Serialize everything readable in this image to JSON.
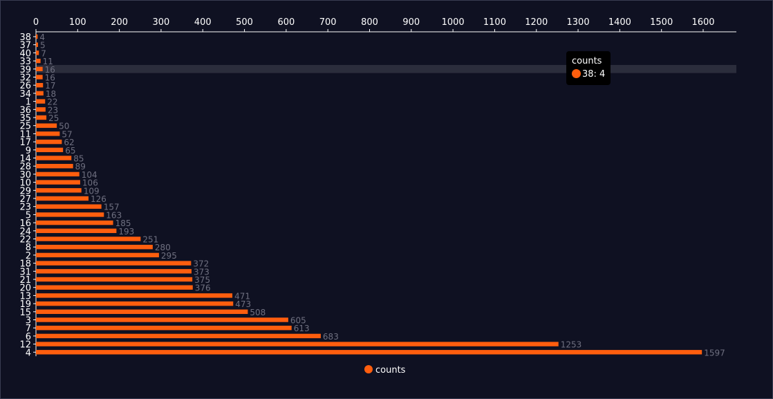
{
  "chart_data": {
    "type": "bar",
    "orientation": "horizontal",
    "categories": [
      "38",
      "37",
      "40",
      "33",
      "39",
      "32",
      "26",
      "34",
      "1",
      "36",
      "35",
      "25",
      "11",
      "17",
      "9",
      "14",
      "28",
      "30",
      "10",
      "29",
      "27",
      "23",
      "5",
      "16",
      "24",
      "22",
      "8",
      "2",
      "18",
      "31",
      "21",
      "20",
      "13",
      "19",
      "15",
      "3",
      "7",
      "6",
      "12",
      "4"
    ],
    "series": [
      {
        "name": "counts",
        "values": [
          4,
          5,
          7,
          11,
          16,
          16,
          17,
          18,
          22,
          23,
          25,
          50,
          57,
          62,
          65,
          85,
          89,
          104,
          106,
          109,
          126,
          157,
          163,
          185,
          193,
          251,
          280,
          295,
          372,
          373,
          375,
          376,
          471,
          473,
          508,
          605,
          613,
          683,
          1253,
          1597
        ]
      }
    ],
    "xlim": [
      0,
      1680
    ],
    "x_ticks": [
      "0",
      "100",
      "200",
      "300",
      "400",
      "500",
      "600",
      "700",
      "800",
      "900",
      "1000",
      "1100",
      "1200",
      "1300",
      "1400",
      "1500",
      "1600"
    ],
    "x_axis_position": "top",
    "grid": false,
    "legend": "bottom-center",
    "bar_color": "#ff5e0e",
    "label_color": "#6f7080",
    "axis_color": "#ffffff",
    "highlight_category": "39"
  },
  "tooltip": {
    "title": "counts",
    "entry": "38: 4"
  },
  "legend": {
    "label": "counts"
  }
}
